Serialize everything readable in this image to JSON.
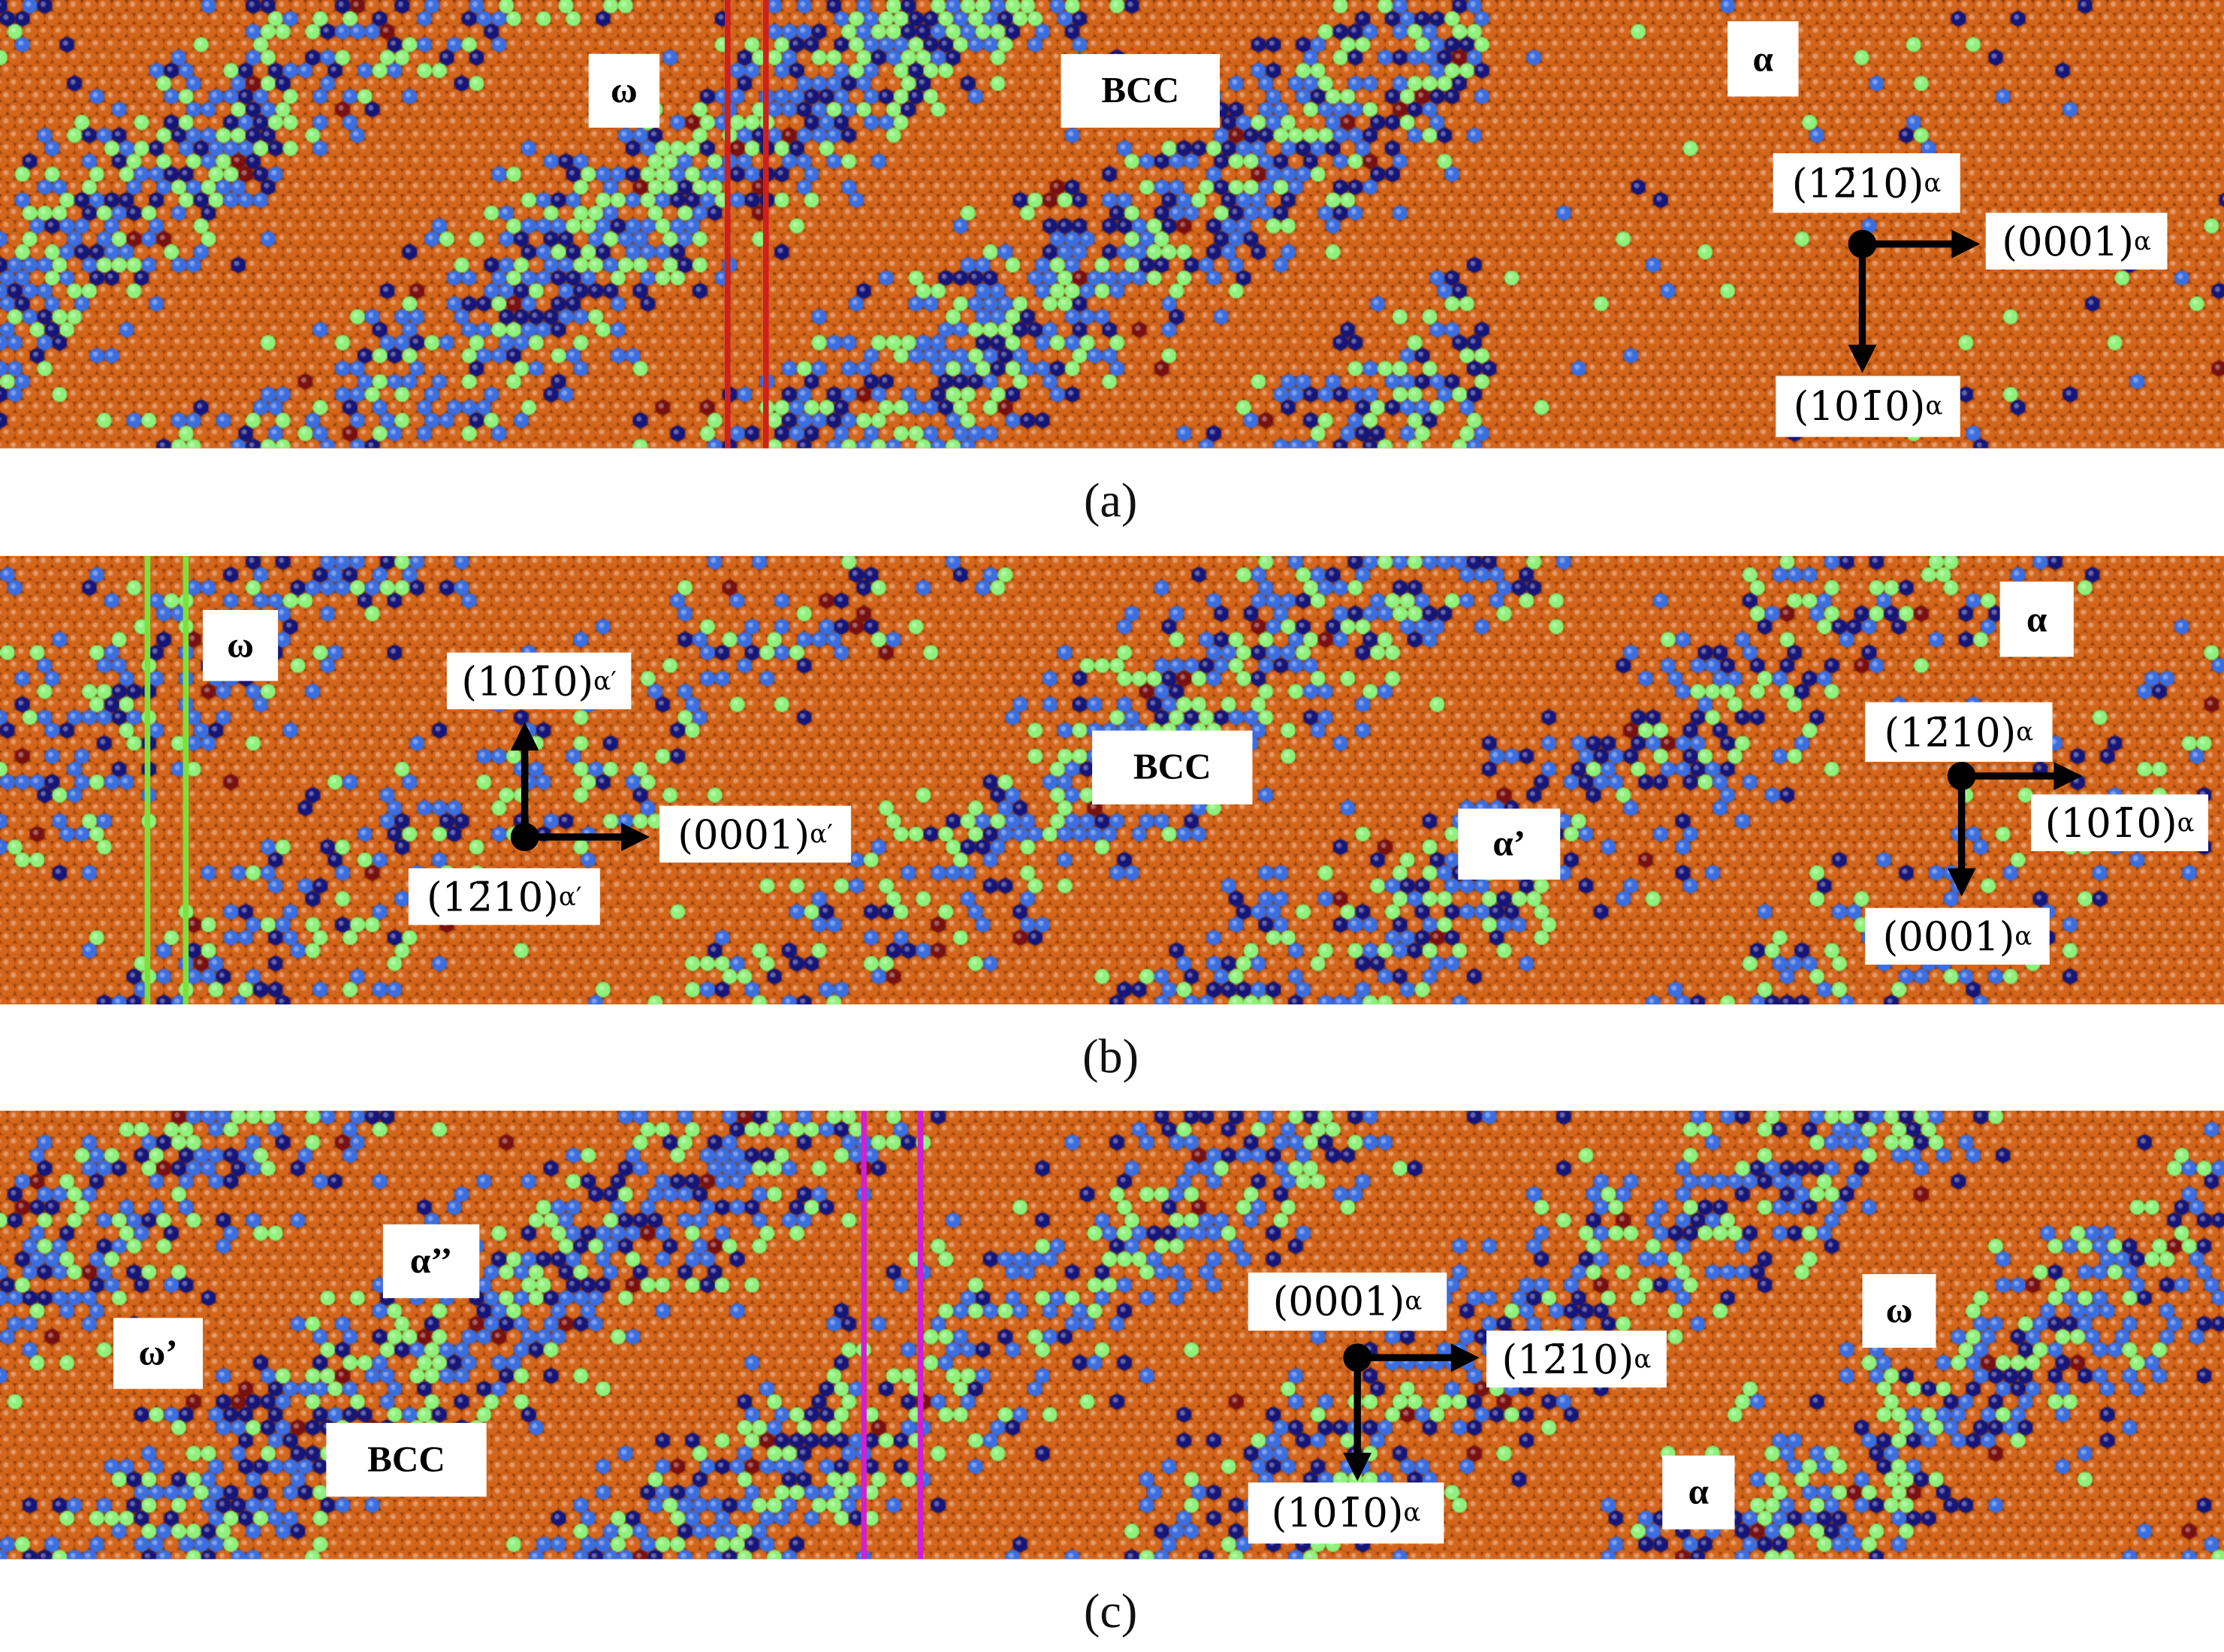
{
  "panels": [
    {
      "caption": "(a)",
      "boundary_color": "#d0201c",
      "phases": [
        "ω",
        "BCC",
        "α"
      ],
      "axes": [
        {
          "main": "(12̄10)",
          "sub": "α"
        },
        {
          "main": "(0001)",
          "sub": "α"
        },
        {
          "main": "(101̄0)",
          "sub": "α"
        }
      ]
    },
    {
      "caption": "(b)",
      "boundary_color": "#7ee03a",
      "phases": [
        "ω",
        "BCC",
        "α’",
        "α"
      ],
      "axes": [
        {
          "main": "(101̄0)",
          "sub": "α′"
        },
        {
          "main": "(0001)",
          "sub": "α′"
        },
        {
          "main": "(12̄10)",
          "sub": "α′"
        },
        {
          "main": "(12̄10)",
          "sub": "α"
        },
        {
          "main": "(101̄0)",
          "sub": "α"
        },
        {
          "main": "(0001)",
          "sub": "α"
        }
      ]
    },
    {
      "caption": "(c)",
      "boundary_color": "#d21fd0",
      "phases": [
        "α’’",
        "ω’",
        "BCC",
        "ω",
        "α"
      ],
      "axes": [
        {
          "main": "(0001)",
          "sub": "α"
        },
        {
          "main": "(12̄10)",
          "sub": "α"
        },
        {
          "main": "(101̄0)",
          "sub": "α"
        }
      ]
    }
  ],
  "atom_colors": {
    "hcp": "#d4661c",
    "bcc": "#3b6ee0",
    "fcc": "#8ef27a",
    "other": "#15157a",
    "ico": "#7a1010"
  }
}
